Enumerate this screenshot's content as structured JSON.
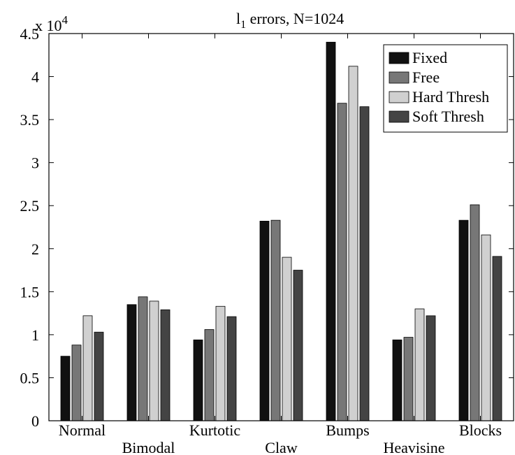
{
  "chart_data": {
    "type": "bar",
    "title_main": "l",
    "title_sub": "1",
    "title_rest": " errors, N=1024",
    "exponent_base": "x 10",
    "exponent_power": "4",
    "categories": [
      "Normal",
      "Bimodal",
      "Kurtotic",
      "Claw",
      "Bumps",
      "Heavisine",
      "Blocks"
    ],
    "series": [
      {
        "name": "Fixed",
        "color": "#111111",
        "values": [
          0.75,
          1.35,
          0.94,
          2.32,
          4.4,
          0.94,
          2.33
        ]
      },
      {
        "name": "Free",
        "color": "#777777",
        "values": [
          0.88,
          1.44,
          1.06,
          2.33,
          3.69,
          0.97,
          2.51
        ]
      },
      {
        "name": "Hard Thresh",
        "color": "#d0d0d0",
        "values": [
          1.22,
          1.39,
          1.33,
          1.9,
          4.12,
          1.3,
          2.16
        ]
      },
      {
        "name": "Soft Thresh",
        "color": "#444444",
        "values": [
          1.03,
          1.29,
          1.21,
          1.75,
          3.65,
          1.22,
          1.91
        ]
      }
    ],
    "ylim": [
      0,
      4.5
    ],
    "yticks": [
      "0",
      "0.5",
      "1",
      "1.5",
      "2",
      "2.5",
      "3",
      "3.5",
      "4",
      "4.5"
    ],
    "grid": false,
    "legend_position": "top-right"
  }
}
